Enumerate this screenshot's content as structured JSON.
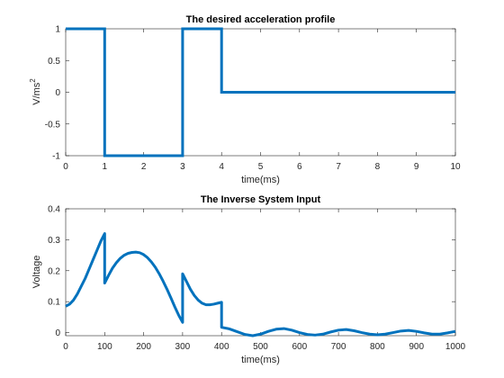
{
  "chart_data": [
    {
      "type": "line",
      "title": "The desired acceleration profile",
      "xlabel": "time(ms)",
      "ylabel": "V/ms",
      "ylabel_superscript": "2",
      "xlim": [
        0,
        10
      ],
      "ylim": [
        -1,
        1
      ],
      "xticks": [
        "0",
        "1",
        "2",
        "3",
        "4",
        "5",
        "6",
        "7",
        "8",
        "9",
        "10"
      ],
      "yticks": [
        "-1",
        "-0.5",
        "0",
        "0.5",
        "1"
      ],
      "color": "#0072bd",
      "series": [
        {
          "x": [
            0,
            1,
            1,
            3,
            3,
            4,
            4,
            10
          ],
          "y": [
            1,
            1,
            -1,
            -1,
            1,
            1,
            0,
            0
          ]
        }
      ]
    },
    {
      "type": "line",
      "title": "The Inverse System Input",
      "xlabel": "time(ms)",
      "ylabel": "Voltage",
      "xlim": [
        0,
        1000
      ],
      "ylim": [
        -0.01,
        0.4
      ],
      "xticks": [
        "0",
        "100",
        "200",
        "300",
        "400",
        "500",
        "600",
        "700",
        "800",
        "900",
        "1000"
      ],
      "yticks": [
        "0",
        "0.1",
        "0.2",
        "0.3",
        "0.4"
      ],
      "color": "#0072bd",
      "series": [
        {
          "x": [
            0,
            10,
            20,
            30,
            40,
            50,
            60,
            70,
            80,
            90,
            100,
            100,
            110,
            120,
            130,
            140,
            150,
            160,
            170,
            180,
            190,
            200,
            210,
            220,
            230,
            240,
            250,
            260,
            270,
            280,
            290,
            300,
            300,
            310,
            320,
            330,
            340,
            350,
            360,
            370,
            380,
            390,
            400,
            400,
            420,
            440,
            460,
            480,
            500,
            520,
            540,
            560,
            580,
            600,
            620,
            640,
            660,
            680,
            700,
            720,
            740,
            760,
            780,
            800,
            820,
            840,
            860,
            880,
            900,
            920,
            940,
            960,
            980,
            1000
          ],
          "y": [
            0.085,
            0.092,
            0.105,
            0.125,
            0.15,
            0.175,
            0.205,
            0.235,
            0.265,
            0.295,
            0.32,
            0.16,
            0.185,
            0.208,
            0.226,
            0.24,
            0.25,
            0.256,
            0.259,
            0.26,
            0.258,
            0.252,
            0.242,
            0.228,
            0.211,
            0.19,
            0.166,
            0.14,
            0.112,
            0.083,
            0.056,
            0.033,
            0.19,
            0.165,
            0.14,
            0.12,
            0.105,
            0.095,
            0.09,
            0.09,
            0.092,
            0.095,
            0.098,
            0.017,
            0.012,
            0.003,
            -0.006,
            -0.01,
            -0.005,
            0.004,
            0.011,
            0.013,
            0.008,
            0.0,
            -0.006,
            -0.008,
            -0.005,
            0.002,
            0.008,
            0.01,
            0.006,
            0.0,
            -0.005,
            -0.007,
            -0.005,
            0.0,
            0.005,
            0.007,
            0.004,
            -0.001,
            -0.005,
            -0.005,
            -0.001,
            0.004
          ]
        }
      ]
    }
  ]
}
